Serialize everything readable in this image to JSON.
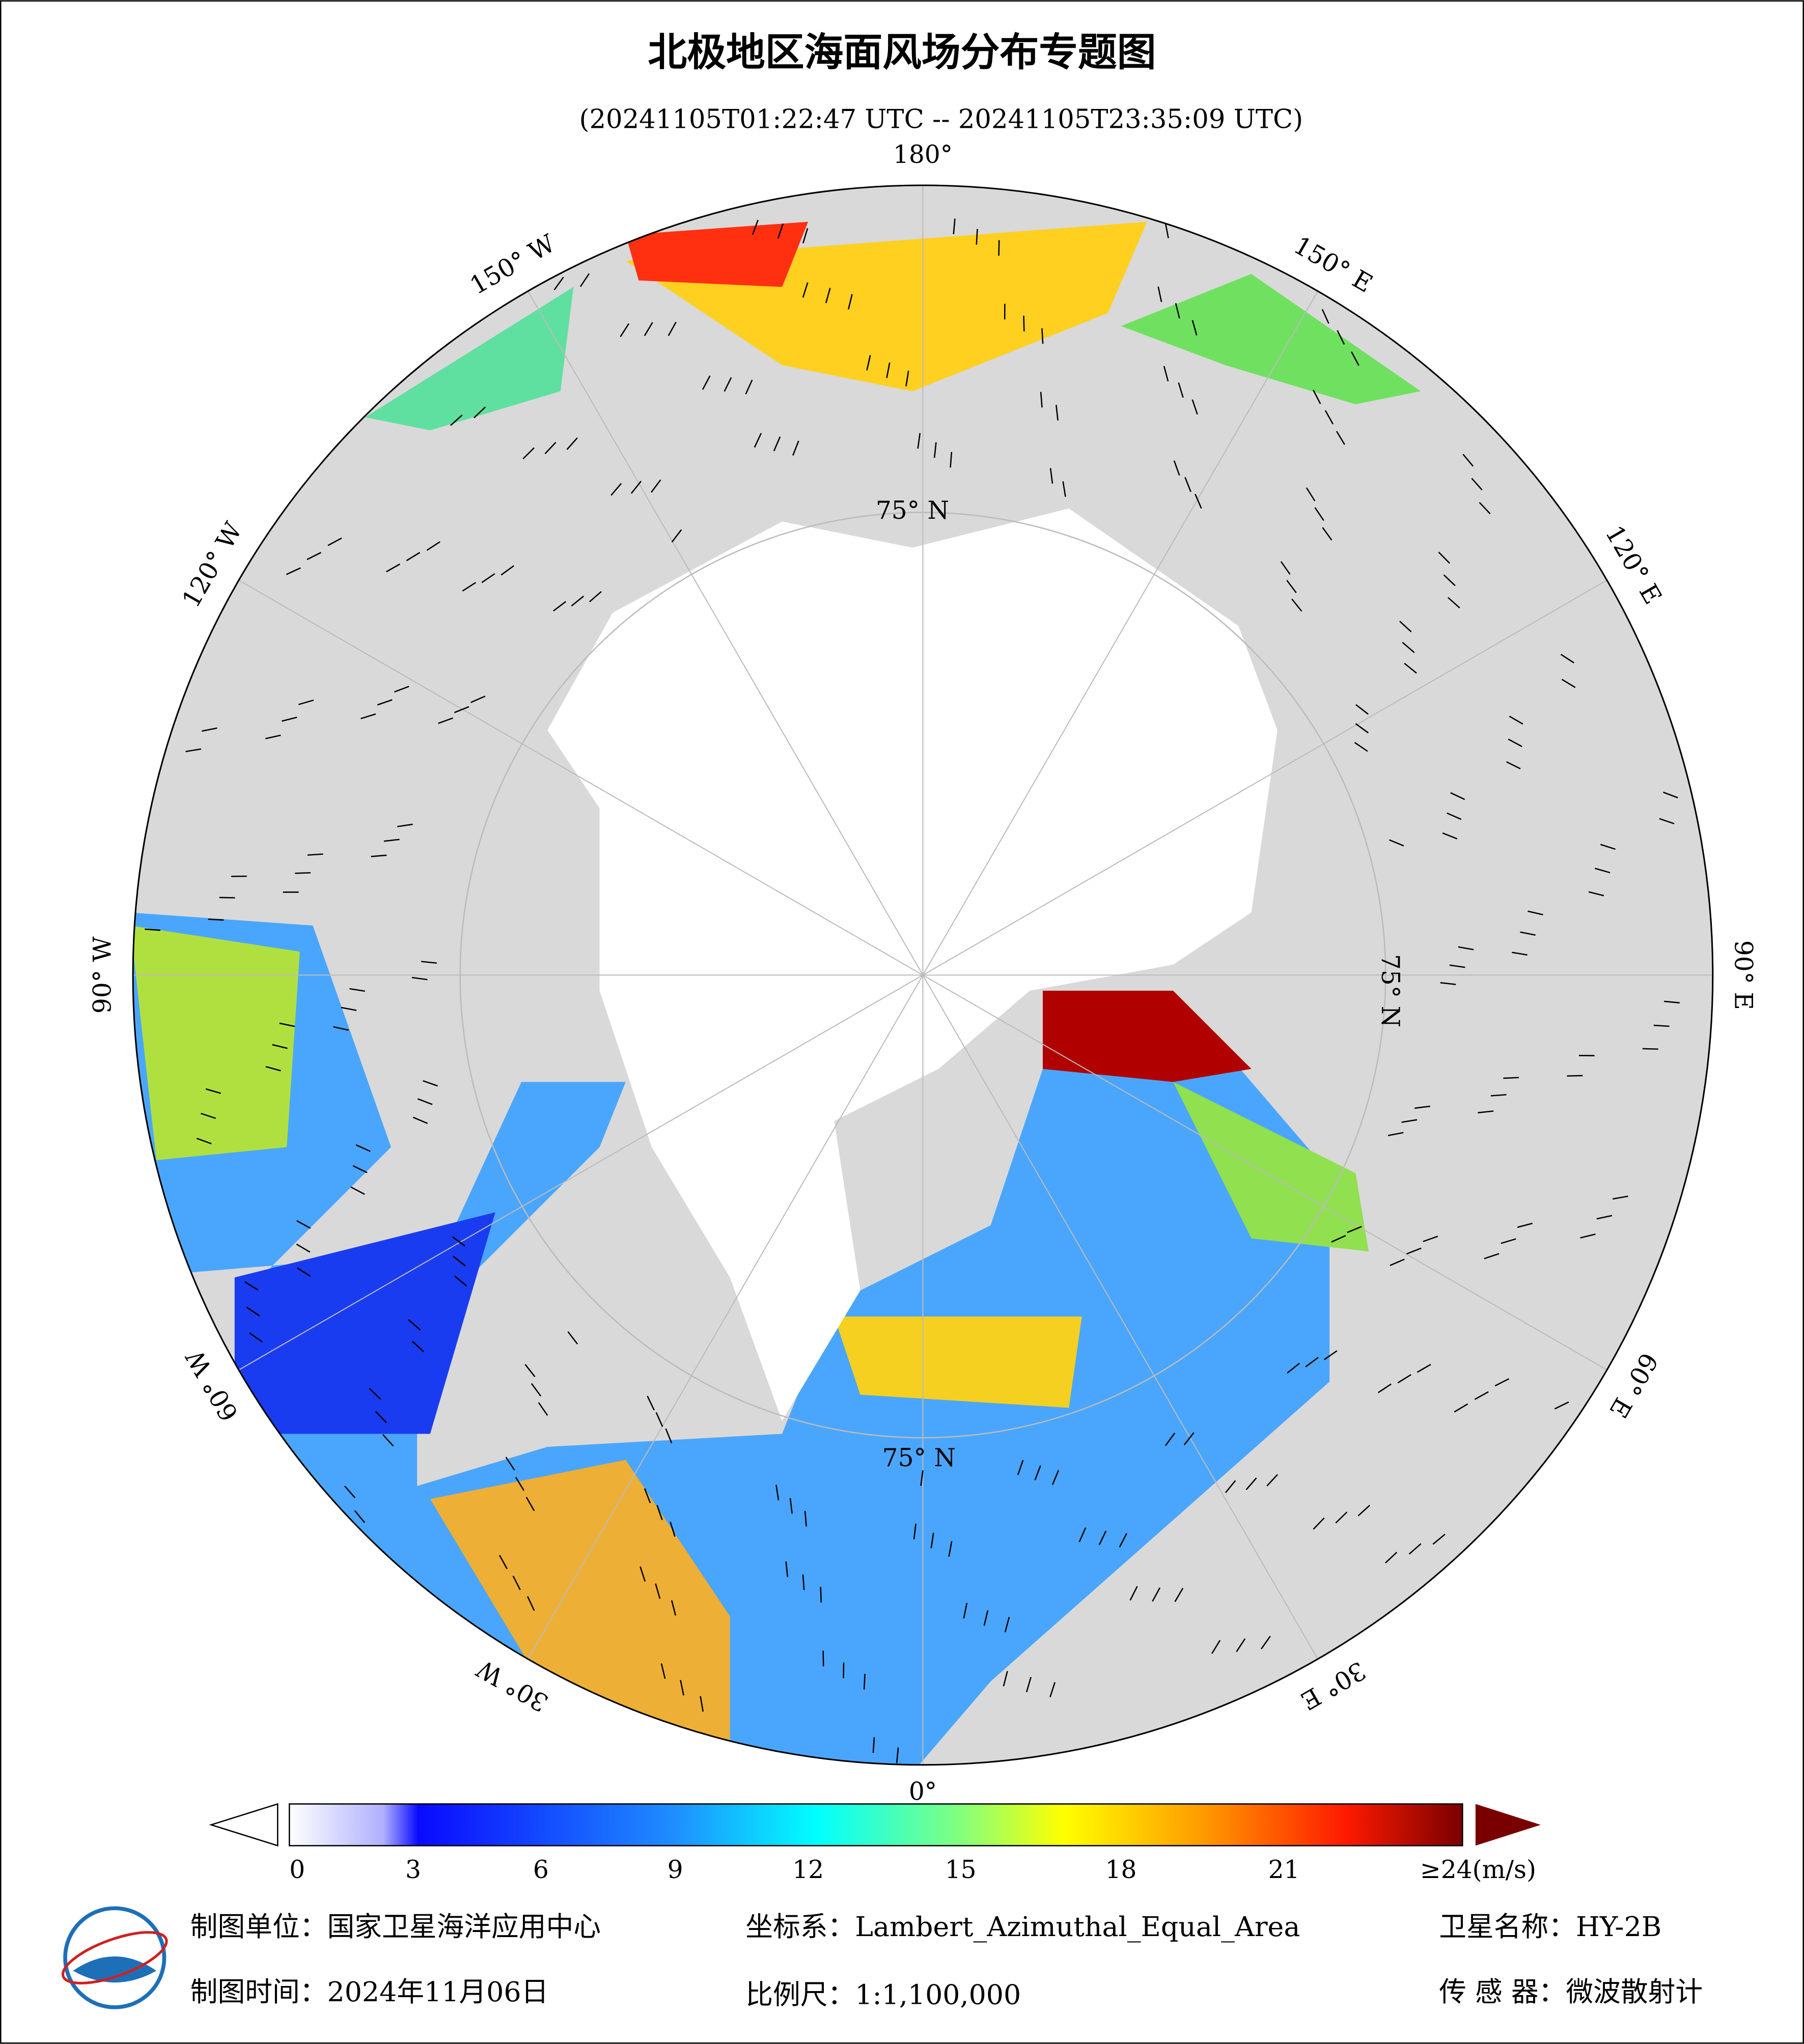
{
  "header": {
    "title": "北极地区海面风场分布专题图",
    "subtitle": "(20241105T01:22:47 UTC -- 20241105T23:35:09 UTC)"
  },
  "map": {
    "lon_labels": [
      "180°",
      "150° E",
      "120° E",
      "90° E",
      "60° E",
      "30° E",
      "0°",
      "30° W",
      "60° W",
      "90° W",
      "120° W",
      "150° W"
    ],
    "lat_labels": [
      "75° N",
      "75° N",
      "75° N"
    ]
  },
  "colorbar": {
    "ticks": [
      0,
      3,
      6,
      9,
      12,
      15,
      18,
      21
    ],
    "max_label": "≥24(m/s)"
  },
  "footer": {
    "unit": "制图单位：国家卫星海洋应用中心",
    "crs": "坐标系：Lambert_Azimuthal_Equal_Area",
    "satellite": "卫星名称：HY-2B",
    "date": "制图时间：2024年11月06日",
    "scale": "比例尺：1:1,100,000",
    "sensor": "传 感 器：微波散射计"
  }
}
